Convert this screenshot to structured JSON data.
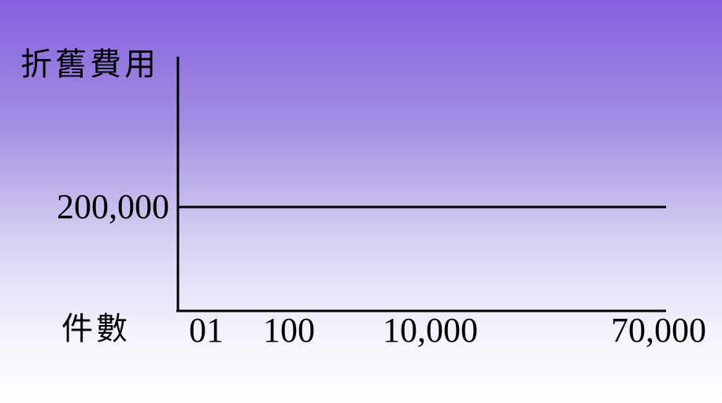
{
  "chart_data": {
    "type": "line",
    "ylabel": "折舊費用",
    "xlabel": "件數",
    "x_ticks": [
      "01",
      "100",
      "10,000",
      "70,000"
    ],
    "y_ticks": [
      "200,000"
    ],
    "series": [
      {
        "x": [
          0,
          70000
        ],
        "y": [
          200000,
          200000
        ]
      }
    ],
    "colors": {
      "line": "#000000",
      "axis": "#000000"
    },
    "grid": false,
    "legend": "none"
  }
}
